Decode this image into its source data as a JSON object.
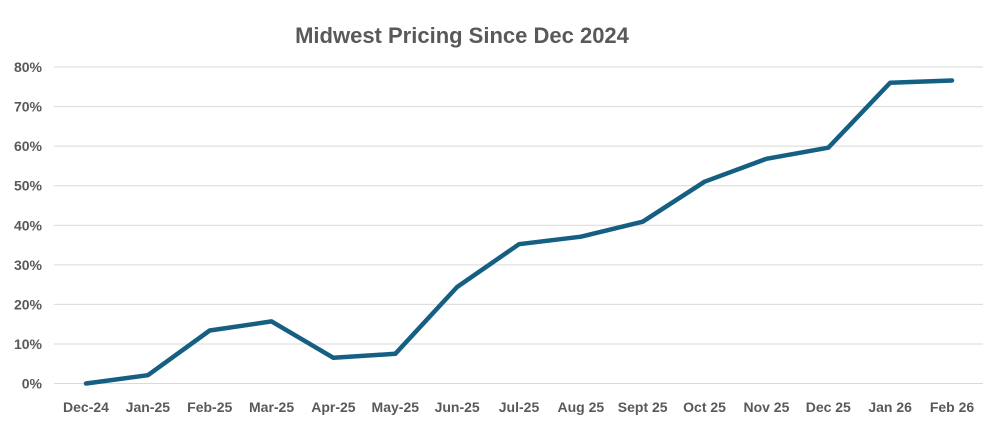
{
  "chart_data": {
    "type": "line",
    "title": "Midwest Pricing Since Dec 2024",
    "categories": [
      "Dec-24",
      "Jan-25",
      "Feb-25",
      "Mar-25",
      "Apr-25",
      "May-25",
      "Jun-25",
      "Jul-25",
      "Aug 25",
      "Sept 25",
      "Oct 25",
      "Nov 25",
      "Dec 25",
      "Jan 26",
      "Feb 26"
    ],
    "values": [
      0,
      2.1,
      13.4,
      15.7,
      6.5,
      7.5,
      24.4,
      35.2,
      37.1,
      40.9,
      51.0,
      56.8,
      59.6,
      76.0,
      76.6
    ],
    "xlabel": "",
    "ylabel": "",
    "ylim": [
      0,
      80
    ],
    "y_ticks": [
      "0%",
      "10%",
      "20%",
      "30%",
      "40%",
      "50%",
      "60%",
      "70%",
      "80%"
    ],
    "grid": "horizontal",
    "legend_position": "none",
    "line_color": "#156082",
    "gridline_color": "#d9d9d9",
    "label_color": "#595959",
    "title_color": "#595959",
    "background_color": "#ffffff"
  }
}
